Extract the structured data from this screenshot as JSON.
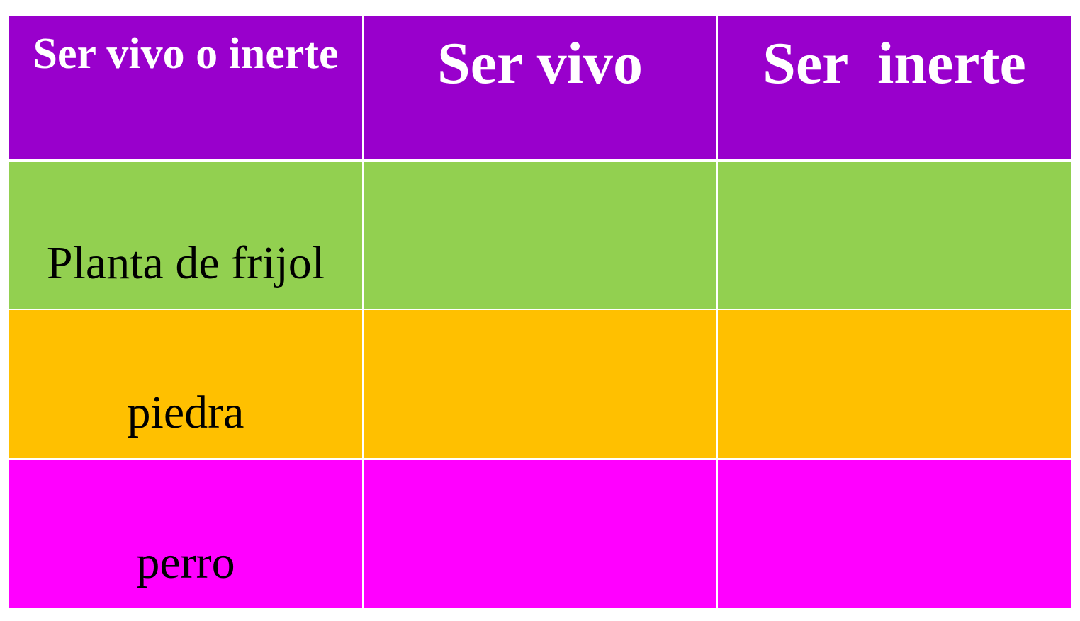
{
  "colors": {
    "header": "#9900CC",
    "row_1": "#92D050",
    "row_2": "#FFC000",
    "row_3": "#FF00FF"
  },
  "table": {
    "headers": [
      "Ser vivo o inerte",
      "Ser vivo",
      "Ser  inerte"
    ],
    "rows": [
      {
        "label": "Planta de frijol",
        "ser_vivo": "",
        "ser_inerte": ""
      },
      {
        "label": "piedra",
        "ser_vivo": "",
        "ser_inerte": ""
      },
      {
        "label": "perro",
        "ser_vivo": "",
        "ser_inerte": ""
      }
    ]
  }
}
